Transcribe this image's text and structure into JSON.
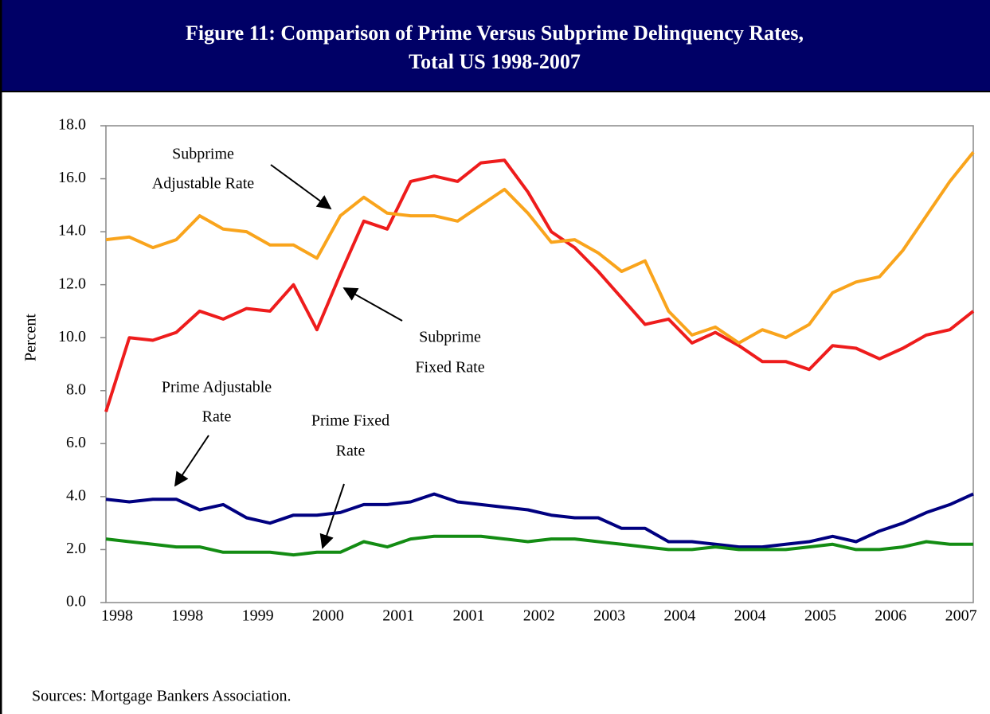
{
  "chart_data": {
    "type": "line",
    "title": [
      "Figure 11: Comparison of Prime Versus Subprime Delinquency Rates,",
      "Total US 1998-2007"
    ],
    "ylabel": "Percent",
    "source": "Sources: Mortgage Bankers Association.",
    "categories": [
      "1998",
      null,
      null,
      "1998",
      null,
      null,
      "1999",
      null,
      null,
      "2000",
      null,
      null,
      "2001",
      null,
      null,
      "2001",
      null,
      null,
      "2002",
      null,
      null,
      "2003",
      null,
      null,
      "2004",
      null,
      null,
      "2004",
      null,
      null,
      "2005",
      null,
      null,
      "2006",
      null,
      null,
      "2007",
      null
    ],
    "ylim": [
      0,
      18
    ],
    "yticks": [
      {
        "value": 0,
        "label": "0.0"
      },
      {
        "value": 2,
        "label": "2.0"
      },
      {
        "value": 4,
        "label": "4.0"
      },
      {
        "value": 6,
        "label": "6.0"
      },
      {
        "value": 8,
        "label": "8.0"
      },
      {
        "value": 10,
        "label": "10.0"
      },
      {
        "value": 12,
        "label": "12.0"
      },
      {
        "value": 14,
        "label": "14.0"
      },
      {
        "value": 16,
        "label": "16.0"
      },
      {
        "value": 18,
        "label": "18.0"
      }
    ],
    "grid": false,
    "series": [
      {
        "color": "#ee1c1c",
        "values": [
          7.2,
          10.0,
          9.9,
          10.2,
          11.0,
          10.7,
          11.1,
          11.0,
          12.0,
          10.3,
          12.4,
          14.4,
          14.1,
          15.9,
          16.1,
          15.9,
          16.6,
          16.7,
          15.5,
          14.0,
          13.4,
          12.5,
          11.5,
          10.5,
          10.7,
          9.8,
          10.2,
          9.7,
          9.1,
          9.1,
          8.8,
          9.7,
          9.6,
          9.2,
          9.6,
          10.1,
          10.3,
          11.0
        ]
      },
      {
        "color": "#f9a41c",
        "values": [
          13.7,
          13.8,
          13.4,
          13.7,
          14.6,
          14.1,
          14.0,
          13.5,
          13.5,
          13.0,
          14.6,
          15.3,
          14.7,
          14.6,
          14.6,
          14.4,
          15.0,
          15.6,
          14.7,
          13.6,
          13.7,
          13.2,
          12.5,
          12.9,
          11.0,
          10.1,
          10.4,
          9.8,
          10.3,
          10.0,
          10.5,
          11.7,
          12.1,
          12.3,
          13.3,
          14.6,
          15.9,
          17.0
        ]
      },
      {
        "color": "#000080",
        "values": [
          3.9,
          3.8,
          3.9,
          3.9,
          3.5,
          3.7,
          3.2,
          3.0,
          3.3,
          3.3,
          3.4,
          3.7,
          3.7,
          3.8,
          4.1,
          3.8,
          3.7,
          3.6,
          3.5,
          3.3,
          3.2,
          3.2,
          2.8,
          2.8,
          2.3,
          2.3,
          2.2,
          2.1,
          2.1,
          2.2,
          2.3,
          2.5,
          2.3,
          2.7,
          3.0,
          3.4,
          3.7,
          4.1
        ]
      },
      {
        "color": "#138c13",
        "values": [
          2.4,
          2.3,
          2.2,
          2.1,
          2.1,
          1.9,
          1.9,
          1.9,
          1.8,
          1.9,
          1.9,
          2.3,
          2.1,
          2.4,
          2.5,
          2.5,
          2.5,
          2.4,
          2.3,
          2.4,
          2.4,
          2.3,
          2.2,
          2.1,
          2.0,
          2.0,
          2.1,
          2.0,
          2.0,
          2.0,
          2.1,
          2.2,
          2.0,
          2.0,
          2.1,
          2.3,
          2.2,
          2.2
        ]
      }
    ],
    "annotations": [
      {
        "text": [
          "Subprime",
          "Adjustable Rate"
        ]
      },
      {
        "text": [
          "Subprime",
          "Fixed Rate"
        ]
      },
      {
        "text": [
          "Prime Adjustable",
          "Rate"
        ]
      },
      {
        "text": [
          "Prime Fixed",
          "Rate"
        ]
      }
    ]
  }
}
